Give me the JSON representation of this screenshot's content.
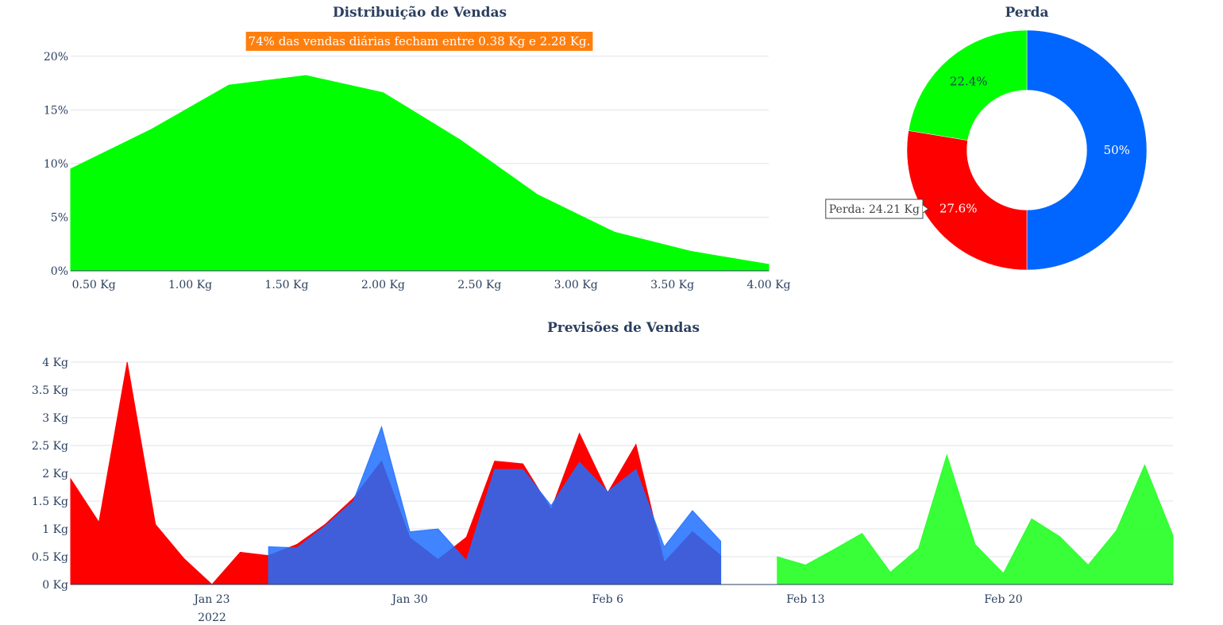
{
  "chart_data": [
    {
      "type": "area",
      "title": "Distribuição de Vendas",
      "annotation": "74% das vendas diárias fecham entre 0.38 Kg e 2.28 Kg.",
      "colors": {
        "fill": "#00ff00",
        "annotation_bg": "#ff7f0e",
        "annotation_text": "#ffffff"
      },
      "x": [
        0.38,
        0.8,
        1.2,
        1.6,
        2.0,
        2.4,
        2.8,
        3.2,
        3.6,
        4.0
      ],
      "y": [
        9.5,
        13.2,
        17.3,
        18.2,
        16.6,
        12.2,
        7.1,
        3.6,
        1.8,
        0.6
      ],
      "x_tick_values": [
        0.5,
        1.0,
        1.5,
        2.0,
        2.5,
        3.0,
        3.5,
        4.0
      ],
      "x_tick_labels": [
        "0.50 Kg",
        "1.00 Kg",
        "1.50 Kg",
        "2.00 Kg",
        "2.50 Kg",
        "3.00 Kg",
        "3.50 Kg",
        "4.00 Kg"
      ],
      "y_tick_values": [
        0,
        5,
        10,
        15,
        20
      ],
      "y_tick_labels": [
        "0%",
        "5%",
        "10%",
        "15%",
        "20%"
      ],
      "xlim": [
        0.38,
        4.0
      ],
      "ylim": [
        0,
        20.5
      ],
      "grid": true
    },
    {
      "type": "pie",
      "hole": 0.5,
      "title": "Perda",
      "slices": [
        {
          "percent": 50,
          "label": "50%",
          "color": "#0066ff",
          "text_color": "#ffffff"
        },
        {
          "percent": 27.6,
          "label": "27.6%",
          "color": "#ff0000",
          "text_color": "#ffffff"
        },
        {
          "percent": 22.4,
          "label": "22.4%",
          "color": "#00ff00",
          "text_color": "#2a3f5f"
        }
      ],
      "hover_label": "Perda: 24.21 Kg"
    },
    {
      "type": "area",
      "title": "Previsões de Vendas",
      "x_tick_labels": [
        "Jan 23",
        "Jan 30",
        "Feb 6",
        "Feb 13",
        "Feb 20"
      ],
      "x_tick_dates": [
        "2022-01-23",
        "2022-01-30",
        "2022-02-06",
        "2022-02-13",
        "2022-02-20"
      ],
      "x_year_label": "2022",
      "y_tick_values": [
        0,
        0.5,
        1,
        1.5,
        2,
        2.5,
        3,
        3.5,
        4
      ],
      "y_tick_labels": [
        "0 Kg",
        "0.5 Kg",
        "1 Kg",
        "1.5 Kg",
        "2 Kg",
        "2.5 Kg",
        "3 Kg",
        "3.5 Kg",
        "4 Kg"
      ],
      "xlim": [
        "2022-01-18",
        "2022-02-26"
      ],
      "ylim": [
        0,
        4.1
      ],
      "grid": true,
      "series": [
        {
          "color": "#ff0000",
          "points": [
            [
              "2022-01-18",
              1.9
            ],
            [
              "2022-01-19",
              1.12
            ],
            [
              "2022-01-20",
              4.0
            ],
            [
              "2022-01-21",
              1.08
            ],
            [
              "2022-01-22",
              0.47
            ],
            [
              "2022-01-23",
              0.0
            ],
            [
              "2022-01-24",
              0.58
            ],
            [
              "2022-01-25",
              0.52
            ],
            [
              "2022-01-26",
              0.72
            ],
            [
              "2022-01-27",
              1.08
            ],
            [
              "2022-01-28",
              1.55
            ],
            [
              "2022-01-29",
              2.22
            ],
            [
              "2022-01-30",
              0.84
            ],
            [
              "2022-01-31",
              0.45
            ],
            [
              "2022-02-01",
              0.85
            ],
            [
              "2022-02-02",
              2.22
            ],
            [
              "2022-02-03",
              2.17
            ],
            [
              "2022-02-04",
              1.35
            ],
            [
              "2022-02-05",
              2.72
            ],
            [
              "2022-02-06",
              1.65
            ],
            [
              "2022-02-07",
              2.52
            ],
            [
              "2022-02-08",
              0.4
            ],
            [
              "2022-02-09",
              0.95
            ],
            [
              "2022-02-10",
              0.52
            ]
          ]
        },
        {
          "color": "#1f6fff",
          "opacity": 0.85,
          "points": [
            [
              "2022-01-25",
              0.68
            ],
            [
              "2022-01-26",
              0.66
            ],
            [
              "2022-01-27",
              1.05
            ],
            [
              "2022-01-28",
              1.5
            ],
            [
              "2022-01-29",
              2.84
            ],
            [
              "2022-01-30",
              0.95
            ],
            [
              "2022-01-31",
              1.0
            ],
            [
              "2022-02-01",
              0.43
            ],
            [
              "2022-02-02",
              2.07
            ],
            [
              "2022-02-03",
              2.07
            ],
            [
              "2022-02-04",
              1.42
            ],
            [
              "2022-02-05",
              2.2
            ],
            [
              "2022-02-06",
              1.67
            ],
            [
              "2022-02-07",
              2.07
            ],
            [
              "2022-02-08",
              0.68
            ],
            [
              "2022-02-09",
              1.33
            ],
            [
              "2022-02-10",
              0.78
            ]
          ]
        },
        {
          "color": "#22ff22",
          "opacity": 0.9,
          "points": [
            [
              "2022-02-12",
              0.5
            ],
            [
              "2022-02-13",
              0.35
            ],
            [
              "2022-02-14",
              0.63
            ],
            [
              "2022-02-15",
              0.92
            ],
            [
              "2022-02-16",
              0.22
            ],
            [
              "2022-02-17",
              0.65
            ],
            [
              "2022-02-18",
              2.33
            ],
            [
              "2022-02-19",
              0.72
            ],
            [
              "2022-02-20",
              0.2
            ],
            [
              "2022-02-21",
              1.18
            ],
            [
              "2022-02-22",
              0.86
            ],
            [
              "2022-02-23",
              0.35
            ],
            [
              "2022-02-24",
              0.97
            ],
            [
              "2022-02-25",
              2.15
            ],
            [
              "2022-02-26",
              0.88
            ]
          ]
        }
      ]
    }
  ]
}
